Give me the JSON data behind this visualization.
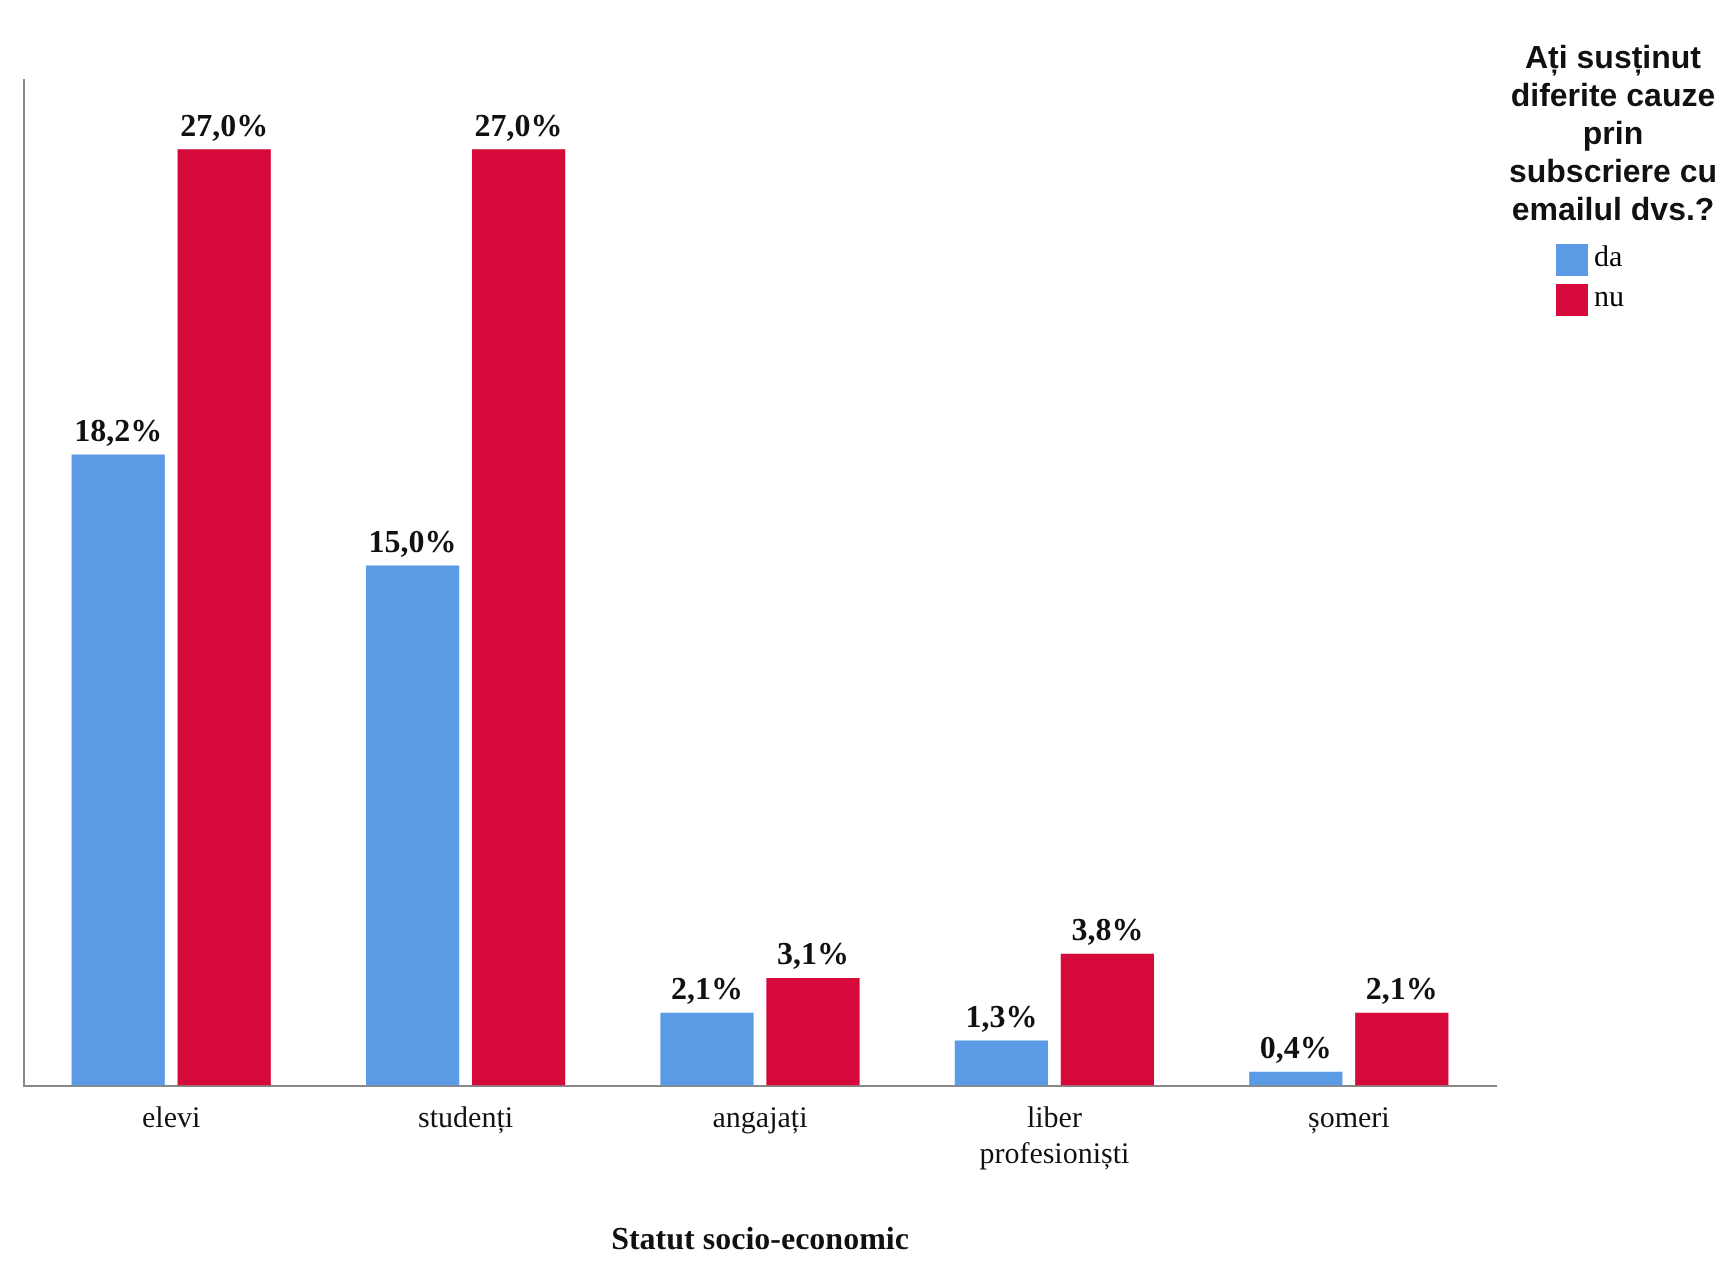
{
  "chart_data": {
    "type": "bar",
    "xlabel": "Statut socio-economic",
    "legend_title": "Ați susținut diferite cauze prin subscriere cu emailul dvs.?",
    "legend": "top right",
    "tick_labels": "x",
    "grid": false,
    "categories": [
      "elevi",
      "studenți",
      "angajați",
      "liber profesioniști",
      "șomeri"
    ],
    "ylim": [
      0,
      29
    ],
    "series": [
      {
        "name": "da",
        "color": "#5b9be6",
        "values": [
          18.2,
          15.0,
          2.1,
          1.3,
          0.4
        ],
        "value_labels": [
          "18,2%",
          "15,0%",
          "2,1%",
          "1,3%",
          "0,4%"
        ]
      },
      {
        "name": "nu",
        "color": "#d6093b",
        "values": [
          27.0,
          27.0,
          3.1,
          3.8,
          2.1
        ],
        "value_labels": [
          "27,0%",
          "27,0%",
          "3,1%",
          "3,8%",
          "2,1%"
        ]
      }
    ]
  }
}
